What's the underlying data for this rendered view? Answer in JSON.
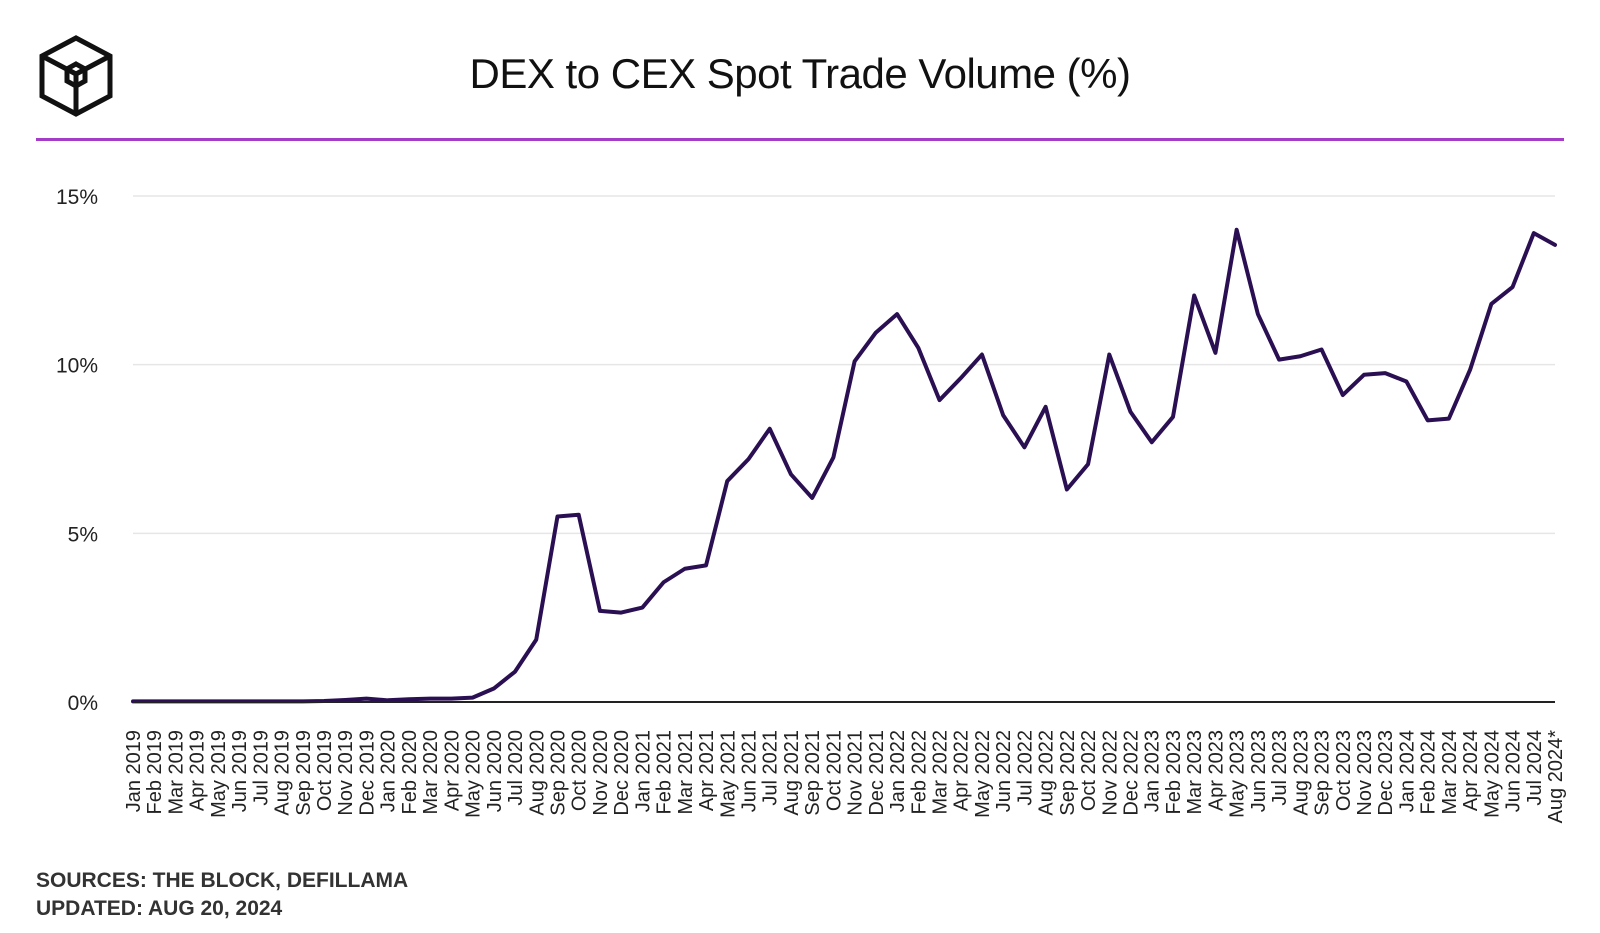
{
  "header": {
    "title": "DEX to CEX Spot Trade Volume (%)",
    "logo_icon": "cube-logo-icon"
  },
  "colors": {
    "accent_line": "#a43cc8",
    "series_line": "#2a0f52",
    "grid": "#e6e6e6",
    "baseline": "#222222"
  },
  "footer": {
    "sources": "SOURCES: THE BLOCK, DEFILLAMA",
    "updated": "UPDATED: AUG 20, 2024"
  },
  "chart_data": {
    "type": "line",
    "title": "DEX to CEX Spot Trade Volume (%)",
    "xlabel": "",
    "ylabel": "",
    "ylim": [
      0,
      15
    ],
    "yticks": [
      0,
      5,
      10,
      15
    ],
    "ytick_labels": [
      "0%",
      "5%",
      "10%",
      "15%"
    ],
    "grid": true,
    "legend": "none",
    "categories": [
      "Jan 2019",
      "Feb 2019",
      "Mar 2019",
      "Apr 2019",
      "May 2019",
      "Jun 2019",
      "Jul 2019",
      "Aug 2019",
      "Sep 2019",
      "Oct 2019",
      "Nov 2019",
      "Dec 2019",
      "Jan 2020",
      "Feb 2020",
      "Mar 2020",
      "Apr 2020",
      "May 2020",
      "Jun 2020",
      "Jul 2020",
      "Aug 2020",
      "Sep 2020",
      "Oct 2020",
      "Nov 2020",
      "Dec 2020",
      "Jan 2021",
      "Feb 2021",
      "Mar 2021",
      "Apr 2021",
      "May 2021",
      "Jun 2021",
      "Jul 2021",
      "Aug 2021",
      "Sep 2021",
      "Oct 2021",
      "Nov 2021",
      "Dec 2021",
      "Jan 2022",
      "Feb 2022",
      "Mar 2022",
      "Apr 2022",
      "May 2022",
      "Jun 2022",
      "Jul 2022",
      "Aug 2022",
      "Sep 2022",
      "Oct 2022",
      "Nov 2022",
      "Dec 2022",
      "Jan 2023",
      "Feb 2023",
      "Mar 2023",
      "Apr 2023",
      "May 2023",
      "Jun 2023",
      "Jul 2023",
      "Aug 2023",
      "Sep 2023",
      "Oct 2023",
      "Nov 2023",
      "Dec 2023",
      "Jan 2024",
      "Feb 2024",
      "Mar 2024",
      "Apr 2024",
      "May 2024",
      "Jun 2024",
      "Jul 2024",
      "Aug 2024*"
    ],
    "series": [
      {
        "values": [
          0.02,
          0.02,
          0.02,
          0.02,
          0.02,
          0.02,
          0.02,
          0.02,
          0.02,
          0.03,
          0.06,
          0.1,
          0.05,
          0.08,
          0.1,
          0.1,
          0.13,
          0.4,
          0.9,
          1.85,
          5.5,
          5.55,
          2.7,
          2.65,
          2.8,
          3.55,
          3.95,
          4.05,
          6.55,
          7.2,
          8.1,
          6.75,
          6.05,
          7.25,
          10.1,
          10.95,
          11.5,
          10.5,
          8.95,
          9.6,
          10.3,
          8.5,
          7.55,
          8.75,
          6.3,
          7.05,
          10.3,
          8.6,
          7.7,
          8.45,
          12.05,
          10.35,
          14.0,
          11.5,
          10.15,
          10.25,
          10.45,
          9.1,
          9.7,
          9.75,
          9.5,
          8.35,
          8.4,
          9.85,
          11.8,
          12.3,
          13.9,
          13.55
        ]
      }
    ]
  }
}
